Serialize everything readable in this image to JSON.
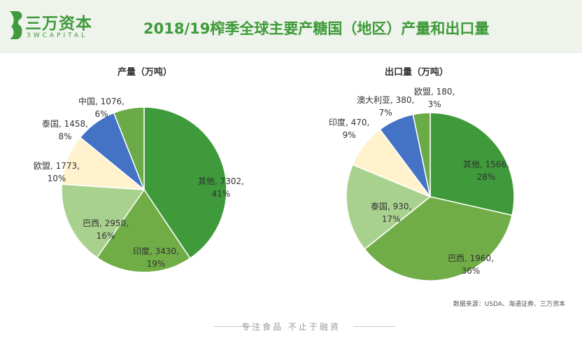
{
  "header": {
    "logo_cn": "三万资本",
    "logo_en": "3WCAPITAL",
    "title": "2018/19榨季全球主要产糖国（地区）产量和出口量"
  },
  "chart_data": [
    {
      "type": "pie",
      "title": "产量（万吨）",
      "start": "top",
      "direction": "clockwise",
      "slices": [
        {
          "label": "其他",
          "value": 7302,
          "percent": "41%",
          "color": "#3e9a3a"
        },
        {
          "label": "印度",
          "value": 3430,
          "percent": "19%",
          "color": "#70ad47"
        },
        {
          "label": "巴西",
          "value": 2950,
          "percent": "16%",
          "color": "#a9d18e"
        },
        {
          "label": "欧盟",
          "value": 1773,
          "percent": "10%",
          "color": "#fff2cc"
        },
        {
          "label": "泰国",
          "value": 1458,
          "percent": "8%",
          "color": "#4472c4"
        },
        {
          "label": "中国",
          "value": 1076,
          "percent": "6%",
          "color": "#6aab48"
        }
      ]
    },
    {
      "type": "pie",
      "title": "出口量（万吨）",
      "start": "top",
      "direction": "clockwise",
      "slices": [
        {
          "label": "其他",
          "value": 1566,
          "percent": "28%",
          "color": "#3e9a3a"
        },
        {
          "label": "巴西",
          "value": 1960,
          "percent": "36%",
          "color": "#70ad47"
        },
        {
          "label": "泰国",
          "value": 930,
          "percent": "17%",
          "color": "#a9d18e"
        },
        {
          "label": "印度",
          "value": 470,
          "percent": "9%",
          "color": "#fff2cc"
        },
        {
          "label": "澳大利亚",
          "value": 380,
          "percent": "7%",
          "color": "#4472c4"
        },
        {
          "label": "欧盟",
          "value": 180,
          "percent": "3%",
          "color": "#6aab48"
        }
      ]
    }
  ],
  "source": "数据来源：USDA、海通证券、三万资本",
  "footer": "专注食品  不止于融资"
}
